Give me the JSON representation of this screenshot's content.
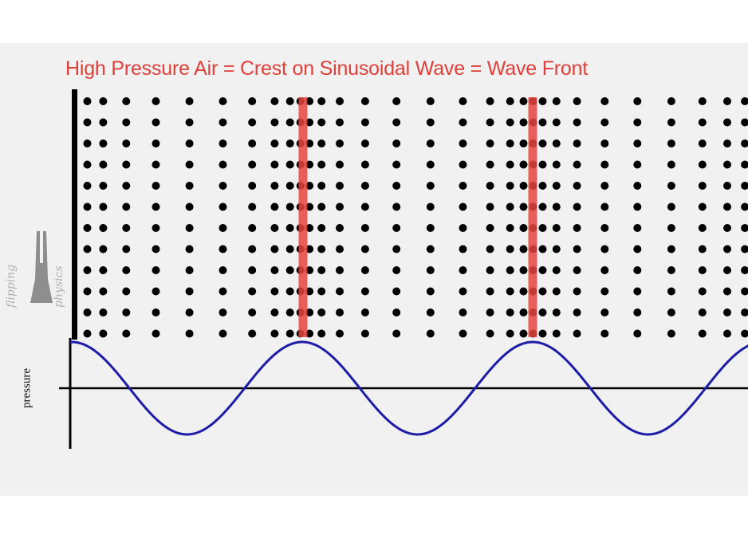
{
  "title": "High Pressure Air = Crest on Sinusoidal Wave = Wave Front",
  "axis_label": "pressure",
  "watermark": "flipping physics",
  "colors": {
    "title": "#e0403a",
    "wave": "#1c1ca8",
    "wavefront": "#e8453c",
    "dots": "#000000",
    "background": "#f1f1f1"
  },
  "diagram": {
    "dot_rows": 12,
    "wavefront_count": 2,
    "wave": "sinusoidal"
  }
}
